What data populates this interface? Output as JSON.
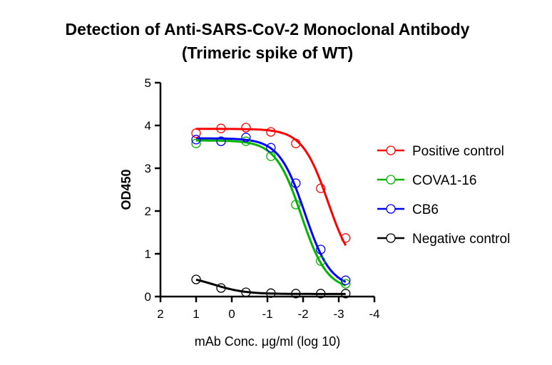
{
  "chart_data": {
    "type": "line",
    "title": "Detection of Anti-SARS-CoV-2 Monoclonal Antibody",
    "subtitle": "(Trimeric spike of WT)",
    "xlabel": "mAb Conc. μg/ml (log 10)",
    "ylabel": "OD450",
    "xlim": [
      2,
      -4
    ],
    "ylim": [
      0,
      5
    ],
    "xticks": [
      2,
      1,
      0,
      -1,
      -2,
      -3,
      -4
    ],
    "xtick_labels": [
      "2",
      "1",
      "0",
      "-1",
      "-2",
      "-3",
      "-4"
    ],
    "yticks": [
      0,
      1,
      2,
      3,
      4,
      5
    ],
    "ytick_labels": [
      "0",
      "1",
      "2",
      "3",
      "4",
      "5"
    ],
    "grid": false,
    "legend_position": "right",
    "x": [
      1,
      0.301,
      -0.398,
      -1.097,
      -1.796,
      -2.495,
      -3.194
    ],
    "series": [
      {
        "name": "Positive control",
        "color": "#ff0000",
        "values": [
          3.82,
          3.93,
          3.95,
          3.85,
          3.58,
          2.53,
          1.37
        ],
        "fit": {
          "top": 3.92,
          "bottom": 0.5,
          "logEC50": -2.7,
          "hill": 1.2
        }
      },
      {
        "name": "COVA1-16",
        "color": "#00b400",
        "values": [
          3.58,
          3.63,
          3.63,
          3.28,
          2.15,
          0.83,
          0.3
        ],
        "fit": {
          "top": 3.65,
          "bottom": 0.15,
          "logEC50": -1.95,
          "hill": 1.2
        }
      },
      {
        "name": "CB6",
        "color": "#0000ff",
        "values": [
          3.67,
          3.63,
          3.72,
          3.48,
          2.65,
          1.1,
          0.38
        ],
        "fit": {
          "top": 3.7,
          "bottom": 0.2,
          "logEC50": -2.05,
          "hill": 1.2
        }
      },
      {
        "name": "Negative control",
        "color": "#000000",
        "values": [
          0.4,
          0.2,
          0.1,
          0.08,
          0.07,
          0.07,
          0.07
        ],
        "fit": {
          "top": 0.5,
          "bottom": 0.06,
          "logEC50": 0.5,
          "hill": 1.0
        }
      }
    ]
  }
}
